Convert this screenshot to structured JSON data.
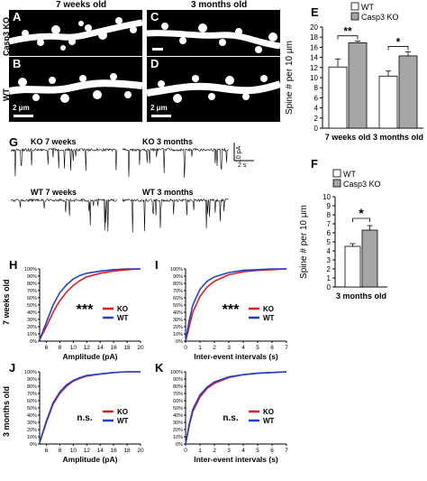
{
  "headers": {
    "left": "7 weeks old",
    "right": "3 months old"
  },
  "row_labels": {
    "top": "Casp3 KO",
    "bottom": "WT"
  },
  "micrograph_letters": [
    "A",
    "B",
    "C",
    "D"
  ],
  "scale_bar_text": "2 μm",
  "panel_letters": {
    "E": "E",
    "F": "F",
    "G": "G",
    "H": "H",
    "I": "I",
    "J": "J",
    "K": "K"
  },
  "traces": {
    "ko_7w": "KO 7 weeks",
    "ko_3m": "KO 3 months",
    "wt_7w": "WT 7 weeks",
    "wt_3m": "WT 3 months",
    "scale_y": "10 pA",
    "scale_x": "2 s"
  },
  "cdf_row_labels": {
    "top": "7 weeks old",
    "bottom": "3 months old"
  },
  "colors": {
    "ko": "#e02020",
    "wt": "#2040d0",
    "bar_ko": "#a6a6a6",
    "bar_wt": "#ffffff"
  },
  "chart_data": [
    {
      "id": "E",
      "type": "bar",
      "categories": [
        "7 weeks old",
        "3 months old"
      ],
      "series": [
        {
          "name": "WT",
          "values": [
            12.1,
            10.3
          ],
          "errors": [
            1.6,
            1.0
          ]
        },
        {
          "name": "Casp3 KO",
          "values": [
            16.9,
            14.3
          ],
          "errors": [
            0.3,
            0.8
          ]
        }
      ],
      "ylabel": "Spine # per 10 μm",
      "ylim": [
        0,
        20
      ],
      "yticks": [
        "0",
        "2",
        "4",
        "6",
        "8",
        "10",
        "12",
        "14",
        "16",
        "18",
        "20"
      ],
      "significance": [
        "**",
        "*"
      ],
      "legend": "top-left"
    },
    {
      "id": "F",
      "type": "bar",
      "categories": [
        "3 months old"
      ],
      "series": [
        {
          "name": "WT",
          "values": [
            4.5
          ],
          "errors": [
            0.3
          ]
        },
        {
          "name": "Casp3 KO",
          "values": [
            6.3
          ],
          "errors": [
            0.5
          ]
        }
      ],
      "ylabel": "Spine # per 10 μm",
      "ylim": [
        0,
        10
      ],
      "yticks": [
        "0",
        "1",
        "2",
        "3",
        "4",
        "5",
        "6",
        "7",
        "8",
        "9",
        "10"
      ],
      "significance": [
        "*"
      ],
      "legend": "top-left"
    },
    {
      "id": "H",
      "type": "line",
      "xlabel": "Amplitude (pA)",
      "xlim": [
        5,
        20
      ],
      "xticks": [
        "6",
        "8",
        "10",
        "12",
        "14",
        "16",
        "18",
        "20"
      ],
      "ylim": [
        0,
        100
      ],
      "yticks": [
        "0%",
        "10%",
        "20%",
        "30%",
        "40%",
        "50%",
        "60%",
        "70%",
        "80%",
        "90%",
        "100%"
      ],
      "annotation": "***",
      "series": [
        {
          "name": "KO",
          "x": [
            5,
            6,
            7,
            8,
            9,
            10,
            11,
            12,
            14,
            16,
            18,
            20
          ],
          "y": [
            2,
            20,
            40,
            56,
            68,
            77,
            84,
            89,
            94,
            97,
            99,
            100
          ]
        },
        {
          "name": "WT",
          "x": [
            5,
            6,
            7,
            8,
            9,
            10,
            11,
            12,
            14,
            16,
            18,
            20
          ],
          "y": [
            2,
            26,
            50,
            67,
            78,
            86,
            91,
            94,
            97,
            99,
            100,
            100
          ]
        }
      ]
    },
    {
      "id": "I",
      "type": "line",
      "xlabel": "Inter-event intervals (s)",
      "xlim": [
        0,
        7
      ],
      "xticks": [
        "0",
        "1",
        "2",
        "3",
        "4",
        "5",
        "6",
        "7"
      ],
      "ylim": [
        0,
        100
      ],
      "yticks": [
        "0%",
        "10%",
        "20%",
        "30%",
        "40%",
        "50%",
        "60%",
        "70%",
        "80%",
        "90%",
        "100%"
      ],
      "annotation": "***",
      "series": [
        {
          "name": "KO",
          "x": [
            0,
            0.25,
            0.5,
            1,
            1.5,
            2,
            3,
            4,
            5,
            6,
            7
          ],
          "y": [
            0,
            20,
            40,
            62,
            75,
            83,
            92,
            96,
            98,
            99,
            100
          ]
        },
        {
          "name": "WT",
          "x": [
            0,
            0.25,
            0.5,
            1,
            1.5,
            2,
            3,
            4,
            5,
            6,
            7
          ],
          "y": [
            0,
            28,
            50,
            72,
            83,
            89,
            95,
            98,
            99,
            100,
            100
          ]
        }
      ]
    },
    {
      "id": "J",
      "type": "line",
      "xlabel": "Amplitude (pA)",
      "xlim": [
        5,
        20
      ],
      "xticks": [
        "6",
        "8",
        "10",
        "12",
        "14",
        "16",
        "18",
        "20"
      ],
      "ylim": [
        0,
        100
      ],
      "yticks": [
        "0%",
        "10%",
        "20%",
        "30%",
        "40%",
        "50%",
        "60%",
        "70%",
        "80%",
        "90%",
        "100%"
      ],
      "annotation": "n.s.",
      "series": [
        {
          "name": "KO",
          "x": [
            5,
            6,
            7,
            8,
            9,
            10,
            11,
            12,
            14,
            16,
            18,
            20
          ],
          "y": [
            2,
            30,
            55,
            70,
            80,
            87,
            91,
            94,
            97,
            99,
            100,
            100
          ]
        },
        {
          "name": "WT",
          "x": [
            5,
            6,
            7,
            8,
            9,
            10,
            11,
            12,
            14,
            16,
            18,
            20
          ],
          "y": [
            2,
            32,
            57,
            72,
            82,
            88,
            92,
            95,
            97,
            99,
            100,
            100
          ]
        }
      ]
    },
    {
      "id": "K",
      "type": "line",
      "xlabel": "Inter-event intervals (s)",
      "xlim": [
        0,
        7
      ],
      "xticks": [
        "0",
        "1",
        "2",
        "3",
        "4",
        "5",
        "6",
        "7"
      ],
      "ylim": [
        0,
        100
      ],
      "yticks": [
        "0%",
        "10%",
        "20%",
        "30%",
        "40%",
        "50%",
        "60%",
        "70%",
        "80%",
        "90%",
        "100%"
      ],
      "annotation": "n.s.",
      "series": [
        {
          "name": "KO",
          "x": [
            0,
            0.25,
            0.5,
            1,
            1.5,
            2,
            3,
            4,
            5,
            6,
            7
          ],
          "y": [
            0,
            25,
            45,
            65,
            77,
            84,
            92,
            96,
            98,
            99,
            100
          ]
        },
        {
          "name": "WT",
          "x": [
            0,
            0.25,
            0.5,
            1,
            1.5,
            2,
            3,
            4,
            5,
            6,
            7
          ],
          "y": [
            0,
            27,
            48,
            68,
            79,
            86,
            93,
            96,
            98,
            99,
            100
          ]
        }
      ]
    }
  ]
}
